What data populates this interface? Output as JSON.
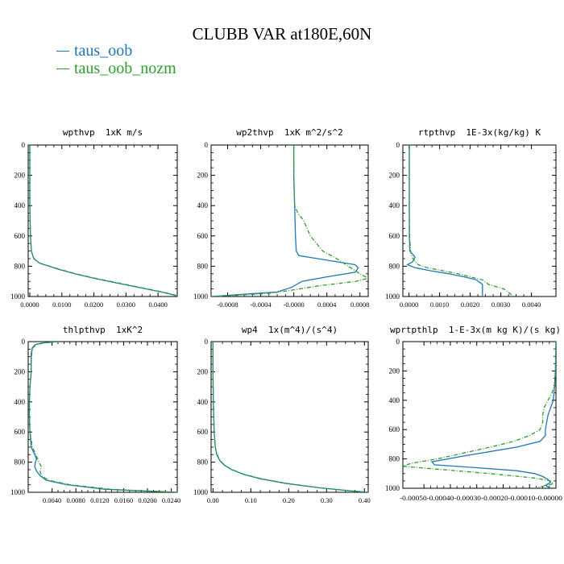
{
  "title": "CLUBB VAR at180E,60N",
  "legend": [
    {
      "label": "taus_oob",
      "color": "#1f77b4"
    },
    {
      "label": "taus_oob_nozm",
      "color": "#2ca02c"
    }
  ],
  "chart_data": [
    {
      "type": "line",
      "title": "wpthvp  1xK m/s",
      "ylim": [
        0,
        1000
      ],
      "yticks": [
        "0",
        "200",
        "400",
        "600",
        "800",
        "1000"
      ],
      "xlim": [
        -0.0005,
        0.046
      ],
      "xtick_values": [
        0.0,
        0.01,
        0.02,
        0.03,
        0.04
      ],
      "xtick_labels": [
        "0.0000",
        "0.0100",
        "0.0200",
        "0.0300",
        "0.0400"
      ],
      "series": [
        {
          "name": "taus_oob",
          "y": [
            0,
            200,
            400,
            600,
            700,
            750,
            780,
            800,
            820,
            850,
            880,
            910,
            940,
            970,
            990,
            1000
          ],
          "x": [
            0.0,
            0.0,
            0.0,
            0.0002,
            0.0005,
            0.0012,
            0.003,
            0.006,
            0.009,
            0.014,
            0.02,
            0.027,
            0.034,
            0.041,
            0.045,
            0.046
          ]
        },
        {
          "name": "taus_oob_nozm",
          "y": [
            0,
            200,
            400,
            600,
            700,
            750,
            780,
            800,
            820,
            850,
            880,
            910,
            940,
            970,
            990,
            1000
          ],
          "x": [
            0.0,
            0.0,
            0.0,
            0.0002,
            0.0005,
            0.0013,
            0.0032,
            0.0062,
            0.0093,
            0.0143,
            0.0205,
            0.0275,
            0.0345,
            0.0415,
            0.0453,
            0.046
          ]
        }
      ]
    },
    {
      "type": "line",
      "title": "wp2thvp  1xK m^2/s^2",
      "ylim": [
        0,
        1000
      ],
      "yticks": [
        "0",
        "200",
        "400",
        "600",
        "800",
        "1000"
      ],
      "xlim": [
        -0.001,
        0.0009
      ],
      "xtick_values": [
        -0.0008,
        -0.0004,
        0.0,
        0.0004,
        0.0008
      ],
      "xtick_labels": [
        "-0.0008",
        "-0.0004",
        "-0.0000",
        "0.0004",
        "0.0008"
      ],
      "series": [
        {
          "name": "taus_oob",
          "y": [
            0,
            200,
            400,
            600,
            700,
            730,
            760,
            790,
            800,
            810,
            840,
            870,
            900,
            940,
            970,
            985,
            1000
          ],
          "x": [
            0.0,
            0.0,
            1e-05,
            2e-05,
            3e-05,
            6e-05,
            0.0004,
            0.00074,
            0.00076,
            0.00078,
            0.00074,
            0.0004,
            0.0001,
            -3e-05,
            -0.0002,
            -0.0006,
            -0.001
          ]
        },
        {
          "name": "taus_oob_nozm",
          "y": [
            0,
            200,
            400,
            450,
            500,
            600,
            700,
            750,
            800,
            850,
            880,
            900,
            930,
            960,
            980,
            995,
            1000
          ],
          "x": [
            0.0,
            0.0,
            1e-05,
            5e-05,
            0.00012,
            0.0002,
            0.00035,
            0.00052,
            0.00066,
            0.0008,
            0.0009,
            0.00075,
            0.0003,
            -5e-05,
            -0.0003,
            -0.0008,
            -0.001
          ]
        }
      ]
    },
    {
      "type": "line",
      "title": "rtpthvp  1E-3x(kg/kg) K",
      "ylim": [
        0,
        1000
      ],
      "yticks": [
        "0",
        "200",
        "400",
        "600",
        "800",
        "1000"
      ],
      "xlim": [
        -0.0002,
        0.0048
      ],
      "xtick_values": [
        0.0,
        0.001,
        0.002,
        0.003,
        0.004
      ],
      "xtick_labels": [
        "0.0000",
        "0.0010",
        "0.0020",
        "0.0030",
        "0.0040"
      ],
      "series": [
        {
          "name": "taus_oob",
          "y": [
            0,
            200,
            400,
            600,
            700,
            740,
            770,
            790,
            810,
            830,
            850,
            870,
            890,
            920,
            950,
            980,
            1000
          ],
          "x": [
            1e-05,
            1e-05,
            1e-05,
            1e-05,
            3e-05,
            0.0002,
            0.00012,
            -5e-05,
            0.0002,
            0.0007,
            0.0013,
            0.0018,
            0.0022,
            0.0024,
            0.0024,
            0.0024,
            0.0024
          ]
        },
        {
          "name": "taus_oob_nozm",
          "y": [
            0,
            200,
            400,
            600,
            700,
            740,
            770,
            790,
            810,
            830,
            850,
            870,
            890,
            920,
            950,
            980,
            1000
          ],
          "x": [
            1e-05,
            1e-05,
            1e-05,
            2e-05,
            5e-05,
            0.0001,
            0.0002,
            0.0003,
            0.0006,
            0.0011,
            0.0016,
            0.002,
            0.0024,
            0.0026,
            0.0031,
            0.0033,
            0.0034
          ]
        }
      ]
    },
    {
      "type": "line",
      "title": "thlpthvp  1xK^2",
      "ylim": [
        0,
        1000
      ],
      "yticks": [
        "0",
        "200",
        "400",
        "600",
        "800",
        "1000"
      ],
      "xlim": [
        0,
        0.025
      ],
      "xtick_values": [
        0.004,
        0.008,
        0.012,
        0.016,
        0.02,
        0.024
      ],
      "xtick_labels": [
        "0.0040",
        "0.0080",
        "0.0120",
        "0.0160",
        "0.0200",
        "0.0240"
      ],
      "series": [
        {
          "name": "taus_oob",
          "y": [
            0,
            5,
            10,
            20,
            40,
            80,
            150,
            200,
            300,
            400,
            500,
            600,
            700,
            750,
            780,
            800,
            830,
            860,
            890,
            920,
            950,
            980,
            1000
          ],
          "x": [
            0.0048,
            0.0035,
            0.0022,
            0.0012,
            0.0007,
            0.0005,
            0.0005,
            0.0005,
            0.0003,
            0.0002,
            0.0002,
            0.0003,
            0.0005,
            0.0011,
            0.0014,
            0.0012,
            0.0011,
            0.0014,
            0.002,
            0.003,
            0.0065,
            0.013,
            0.025
          ]
        },
        {
          "name": "taus_oob_nozm",
          "y": [
            0,
            5,
            10,
            20,
            40,
            80,
            150,
            200,
            300,
            400,
            500,
            600,
            700,
            750,
            780,
            800,
            830,
            860,
            890,
            920,
            950,
            980,
            1000
          ],
          "x": [
            0.0052,
            0.0039,
            0.0025,
            0.0014,
            0.0008,
            0.0006,
            0.0005,
            0.0005,
            0.0003,
            0.0002,
            0.0002,
            0.0003,
            0.0007,
            0.0013,
            0.0016,
            0.0018,
            0.0022,
            0.002,
            0.0022,
            0.0034,
            0.007,
            0.014,
            0.025
          ]
        }
      ]
    },
    {
      "type": "line",
      "title": "wp4  1x(m^4)/(s^4)",
      "ylim": [
        0,
        1000
      ],
      "yticks": [
        "0",
        "200",
        "400",
        "600",
        "800",
        "1000"
      ],
      "xlim": [
        -0.005,
        0.41
      ],
      "xtick_values": [
        0.0,
        0.1,
        0.2,
        0.3,
        0.4
      ],
      "xtick_labels": [
        "0.00",
        "0.10",
        "0.20",
        "0.30",
        "0.40"
      ],
      "series": [
        {
          "name": "taus_oob",
          "y": [
            0,
            200,
            400,
            500,
            600,
            700,
            750,
            790,
            820,
            850,
            880,
            910,
            940,
            970,
            990,
            1000
          ],
          "x": [
            0.0,
            0.0,
            0.001,
            0.002,
            0.003,
            0.006,
            0.01,
            0.018,
            0.03,
            0.05,
            0.08,
            0.125,
            0.19,
            0.28,
            0.36,
            0.41
          ]
        },
        {
          "name": "taus_oob_nozm",
          "y": [
            0,
            200,
            400,
            500,
            600,
            700,
            750,
            790,
            820,
            850,
            880,
            910,
            940,
            970,
            990,
            1000
          ],
          "x": [
            0.0,
            0.0,
            0.001,
            0.002,
            0.003,
            0.006,
            0.011,
            0.019,
            0.031,
            0.051,
            0.082,
            0.128,
            0.193,
            0.283,
            0.365,
            0.41
          ]
        }
      ]
    },
    {
      "type": "line",
      "title": "wprtpthlp  1-E-3x(m kg K)/(s kg)",
      "ylim": [
        0,
        1000
      ],
      "yticks": [
        "0",
        "200",
        "400",
        "600",
        "800",
        "1000"
      ],
      "xlim": [
        -0.00058,
        0.0
      ],
      "xtick_values": [
        -0.0005,
        -0.0004,
        -0.0003,
        -0.0002,
        -0.0001,
        0.0
      ],
      "xtick_labels": [
        "-0.00050",
        "-0.00040",
        "-0.00030",
        "-0.00020",
        "-0.00010",
        "0.00000"
      ],
      "xtick_labels_joined": "-0.00050-0.00040-0.00030-0.00020-0.00010-0.00000",
      "series": [
        {
          "name": "taus_oob",
          "y": [
            0,
            200,
            300,
            400,
            450,
            500,
            550,
            600,
            640,
            680,
            720,
            780,
            820,
            840,
            860,
            880,
            900,
            920,
            940,
            960,
            980,
            1000
          ],
          "x": [
            0.0,
            -2e-06,
            -5e-06,
            -1e-05,
            -2e-05,
            -3e-05,
            -3.5e-05,
            -4e-05,
            -4e-05,
            -6e-05,
            -0.00015,
            -0.00035,
            -0.00047,
            -0.00046,
            -0.0003,
            -0.00015,
            -8e-05,
            -5e-05,
            -3e-05,
            -2e-05,
            -4e-05,
            -2e-05
          ]
        },
        {
          "name": "taus_oob_nozm",
          "y": [
            0,
            200,
            300,
            350,
            400,
            450,
            500,
            550,
            600,
            640,
            680,
            720,
            760,
            800,
            830,
            850,
            870,
            900,
            930,
            950,
            970,
            990,
            1000
          ],
          "x": [
            0.0,
            -1e-06,
            -6e-06,
            -1.5e-05,
            -3e-05,
            -4.5e-05,
            -5e-05,
            -5e-05,
            -6e-05,
            -0.0001,
            -0.00016,
            -0.00025,
            -0.00035,
            -0.00045,
            -0.00055,
            -0.00058,
            -0.00045,
            -0.00025,
            -8e-05,
            -2e-05,
            -1e-05,
            -6e-05,
            -8e-05
          ]
        }
      ]
    }
  ]
}
